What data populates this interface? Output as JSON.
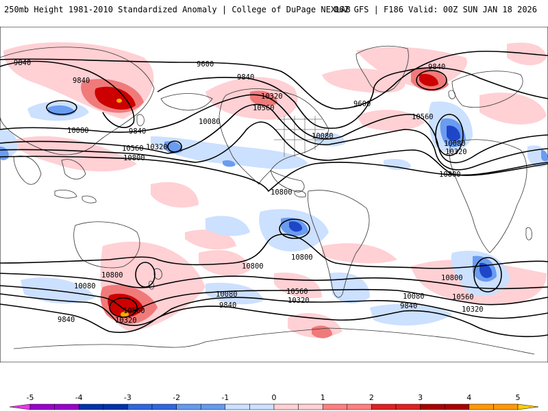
{
  "header": {
    "title": "250mb Height 1981-2010 Standardized Anomaly | College of DuPage NEXLAB",
    "run_info": "06Z GFS | F186 Valid: 00Z SUN JAN 18 2026"
  },
  "colorbar": {
    "ticks": [
      "-5",
      "-4",
      "-3",
      "-2",
      "-1",
      "0",
      "1",
      "2",
      "3",
      "4",
      "5"
    ],
    "colors": [
      "#ee33ee",
      "#9900cc",
      "#0033aa",
      "#3366dd",
      "#6699ee",
      "#cce0ff",
      "#ffffff",
      "#ffd0d4",
      "#ff8080",
      "#dd2222",
      "#aa0000",
      "#ff9900",
      "#ffcc00"
    ]
  },
  "contour_labels": {
    "c9600": "9600",
    "c9840": "9840",
    "c10080": "10080",
    "c10320": "10320",
    "c10560": "10560",
    "c10800": "10800"
  },
  "colors": {
    "neg_light": "#cce0ff",
    "neg_mid": "#6a9cf0",
    "neg_dark": "#1e46c8",
    "pos_light": "#ffd0d4",
    "pos_mid": "#f07a7a",
    "pos_dark": "#cc0000",
    "pos_max": "#ffaa00"
  }
}
